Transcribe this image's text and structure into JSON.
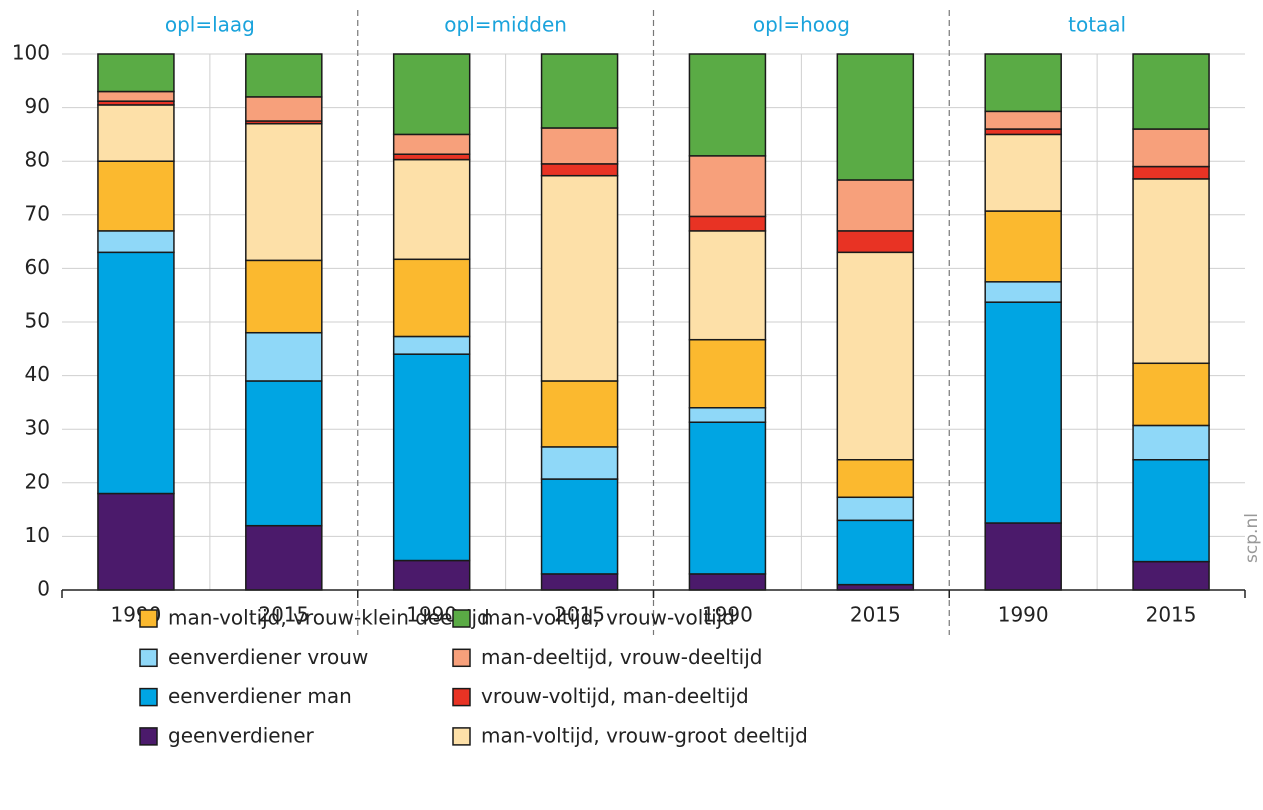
{
  "chart_data": {
    "type": "stacked_bar",
    "groups": [
      "opl=laag",
      "opl=midden",
      "opl=hoog",
      "totaal"
    ],
    "categories": [
      "1990",
      "2015",
      "1990",
      "2015",
      "1990",
      "2015",
      "1990",
      "2015"
    ],
    "series": [
      {
        "name": "geenverdiener",
        "color": "#4b1a6b",
        "values": [
          18,
          12,
          5.5,
          3,
          3,
          1,
          12.5,
          5.3
        ]
      },
      {
        "name": "eenverdiener man",
        "color": "#00a5e3",
        "values": [
          45,
          27,
          38.5,
          17.7,
          28.3,
          12,
          41.2,
          19
        ]
      },
      {
        "name": "eenverdiener vrouw",
        "color": "#8fd8f8",
        "values": [
          4,
          9,
          3.3,
          6,
          2.7,
          4.3,
          3.8,
          6.4
        ]
      },
      {
        "name": "man-voltijd, vrouw-klein deeltijd",
        "color": "#fbb92f",
        "values": [
          13,
          13.5,
          14.4,
          12.3,
          12.7,
          7,
          13.2,
          11.6
        ]
      },
      {
        "name": "man-voltijd, vrouw-groot deeltijd",
        "color": "#fde0a8",
        "values": [
          10.5,
          25.5,
          18.6,
          38.3,
          20.3,
          38.7,
          14.3,
          34.4
        ]
      },
      {
        "name": "vrouw-voltijd, man-deeltijd",
        "color": "#e83324",
        "values": [
          0.7,
          0.5,
          1,
          2.2,
          2.7,
          4,
          1,
          2.3
        ]
      },
      {
        "name": "man-deeltijd, vrouw-deeltijd",
        "color": "#f7a07b",
        "values": [
          1.8,
          4.5,
          3.7,
          6.7,
          11.3,
          9.5,
          3.3,
          7
        ]
      },
      {
        "name": "man-voltijd, vrouw-voltijd",
        "color": "#5aab45",
        "values": [
          7,
          8,
          15,
          13.8,
          19,
          23.5,
          10.7,
          14
        ]
      }
    ],
    "ylim": [
      0,
      100
    ],
    "yticks": [
      0,
      10,
      20,
      30,
      40,
      50,
      60,
      70,
      80,
      90,
      100
    ],
    "grid": true,
    "source": "scp.nl"
  }
}
